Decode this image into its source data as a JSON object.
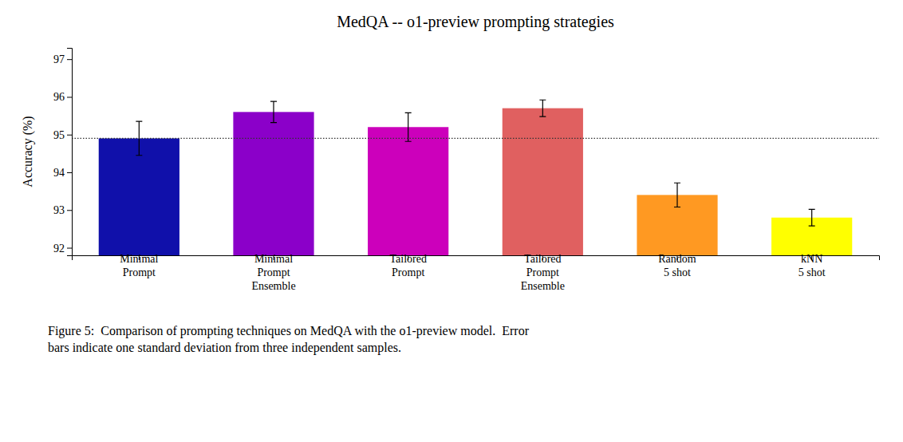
{
  "chart_data": {
    "type": "bar",
    "title": "MedQA -- o1-preview prompting strategies",
    "ylabel": "Accuracy (%)",
    "categories": [
      "Minimal\nPrompt",
      "Minimal\nPrompt\nEnsemble",
      "Tailored\nPrompt",
      "Tailored\nPrompt\nEnsemble",
      "Random\n5 shot",
      "kNN\n5 shot"
    ],
    "values": [
      94.9,
      95.6,
      95.2,
      95.7,
      93.4,
      92.8
    ],
    "errors": [
      0.45,
      0.28,
      0.38,
      0.22,
      0.32,
      0.22
    ],
    "colors": [
      "#1010AA",
      "#8B00C9",
      "#CC00BB",
      "#E06060",
      "#FF9922",
      "#FFFF00"
    ],
    "ylim": [
      91.8,
      97.3
    ],
    "yticks": [
      92,
      93,
      94,
      95,
      96,
      97
    ],
    "reference_line": {
      "value": 94.9,
      "color": "#333333"
    },
    "caption": "Figure 5:  Comparison of prompting techniques on MedQA with the o1-preview model.  Error\nbars indicate one standard deviation from three independent samples.",
    "grid": false
  }
}
